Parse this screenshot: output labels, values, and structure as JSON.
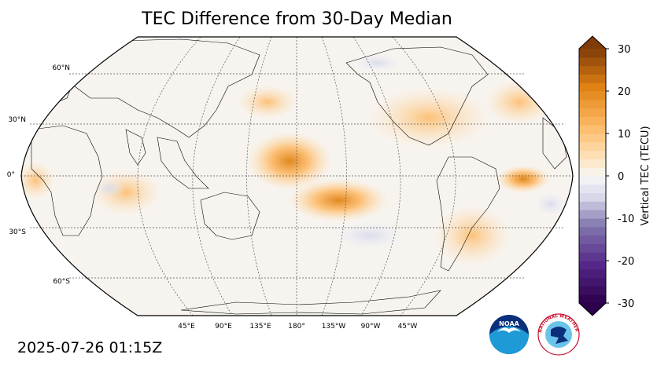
{
  "title": "TEC Difference from 30-Day Median",
  "timestamp": "2025-07-26 01:15Z",
  "map": {
    "projection": "Robinson",
    "central_longitude": "180°",
    "lat_labels": [
      "60°N",
      "30°N",
      "0°",
      "30°S",
      "60°S"
    ],
    "lon_labels": [
      "45°E",
      "90°E",
      "135°E",
      "180°",
      "135°W",
      "90°W",
      "45°W"
    ],
    "gridlines": "dashed",
    "ocean_color": "#f7f4f0",
    "land_outline_color": "#000000"
  },
  "colorbar": {
    "label": "Vertical TEC (TECU)",
    "ticks": [
      "30",
      "20",
      "10",
      "0",
      "-10",
      "-20",
      "-30"
    ],
    "min": -30,
    "max": 30,
    "extend": "both",
    "colormap": "PuOr_r",
    "colors": {
      "high": "#7f3b08",
      "mid_high": "#e08214",
      "neutral": "#f7f7f7",
      "mid_low": "#8073ac",
      "low": "#2d004b"
    }
  },
  "logos": {
    "noaa": "NOAA",
    "nws": "NATIONAL WEATHER SERVICE"
  }
}
